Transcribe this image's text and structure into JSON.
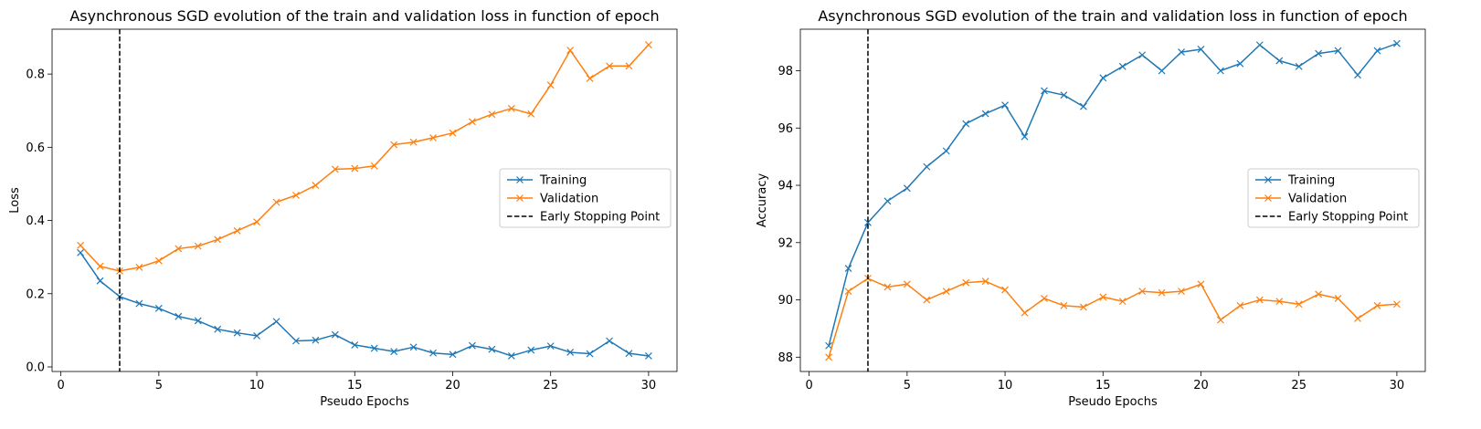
{
  "chart_data": [
    {
      "type": "line",
      "title": "Asynchronous SGD evolution of the train and validation loss in function of epoch",
      "xlabel": "Pseudo Epochs",
      "ylabel": "Loss",
      "xlim": [
        -0.45,
        31.45
      ],
      "ylim": [
        -0.0125,
        0.9225
      ],
      "xticks": [
        0,
        5,
        10,
        15,
        20,
        25,
        30
      ],
      "xtick_labels": [
        "0",
        "5",
        "10",
        "15",
        "20",
        "25",
        "30"
      ],
      "yticks": [
        0.0,
        0.2,
        0.4,
        0.6,
        0.8
      ],
      "ytick_labels": [
        "0.0",
        "0.2",
        "0.4",
        "0.6",
        "0.8"
      ],
      "x": [
        1,
        2,
        3,
        4,
        5,
        6,
        7,
        8,
        9,
        10,
        11,
        12,
        13,
        14,
        15,
        16,
        17,
        18,
        19,
        20,
        21,
        22,
        23,
        24,
        25,
        26,
        27,
        28,
        29,
        30
      ],
      "series": [
        {
          "name": "Training",
          "color": "#1f77b4",
          "marker": "x",
          "values": [
            0.312,
            0.235,
            0.192,
            0.173,
            0.16,
            0.138,
            0.126,
            0.103,
            0.093,
            0.085,
            0.124,
            0.071,
            0.073,
            0.088,
            0.06,
            0.051,
            0.042,
            0.054,
            0.038,
            0.034,
            0.058,
            0.048,
            0.03,
            0.046,
            0.057,
            0.04,
            0.036,
            0.071,
            0.037,
            0.03
          ]
        },
        {
          "name": "Validation",
          "color": "#ff7f0e",
          "marker": "x",
          "values": [
            0.332,
            0.275,
            0.262,
            0.272,
            0.29,
            0.323,
            0.33,
            0.348,
            0.372,
            0.396,
            0.45,
            0.469,
            0.496,
            0.54,
            0.542,
            0.549,
            0.607,
            0.614,
            0.626,
            0.639,
            0.67,
            0.69,
            0.706,
            0.691,
            0.77,
            0.865,
            0.788,
            0.822,
            0.822,
            0.88
          ]
        }
      ],
      "vline": {
        "x": 3,
        "label": "Early Stopping Point",
        "color": "#000000",
        "style": "dashed"
      },
      "legend": "center-right",
      "grid": false
    },
    {
      "type": "line",
      "title": "Asynchronous SGD evolution of the train and validation loss in function of epoch",
      "xlabel": "Pseudo Epochs",
      "ylabel": "Accuracy",
      "xlim": [
        -0.45,
        31.45
      ],
      "ylim": [
        87.5,
        99.45
      ],
      "xticks": [
        0,
        5,
        10,
        15,
        20,
        25,
        30
      ],
      "xtick_labels": [
        "0",
        "5",
        "10",
        "15",
        "20",
        "25",
        "30"
      ],
      "yticks": [
        88,
        90,
        92,
        94,
        96,
        98
      ],
      "ytick_labels": [
        "88",
        "90",
        "92",
        "94",
        "96",
        "98"
      ],
      "x": [
        1,
        2,
        3,
        4,
        5,
        6,
        7,
        8,
        9,
        10,
        11,
        12,
        13,
        14,
        15,
        16,
        17,
        18,
        19,
        20,
        21,
        22,
        23,
        24,
        25,
        26,
        27,
        28,
        29,
        30
      ],
      "series": [
        {
          "name": "Training",
          "color": "#1f77b4",
          "marker": "x",
          "values": [
            88.4,
            91.1,
            92.7,
            93.45,
            93.9,
            94.65,
            95.2,
            96.15,
            96.5,
            96.8,
            95.7,
            97.3,
            97.15,
            96.75,
            97.75,
            98.15,
            98.55,
            98.0,
            98.65,
            98.75,
            98.0,
            98.25,
            98.9,
            98.35,
            98.15,
            98.6,
            98.7,
            97.85,
            98.7,
            98.95
          ]
        },
        {
          "name": "Validation",
          "color": "#ff7f0e",
          "marker": "x",
          "values": [
            88.0,
            90.3,
            90.75,
            90.45,
            90.55,
            90.0,
            90.3,
            90.6,
            90.65,
            90.35,
            89.55,
            90.05,
            89.8,
            89.75,
            90.1,
            89.95,
            90.3,
            90.25,
            90.3,
            90.55,
            89.3,
            89.8,
            90.0,
            89.95,
            89.85,
            90.2,
            90.05,
            89.35,
            89.8,
            89.85
          ]
        }
      ],
      "vline": {
        "x": 3,
        "label": "Early Stopping Point",
        "color": "#000000",
        "style": "dashed"
      },
      "legend": "center-right",
      "grid": false
    }
  ]
}
